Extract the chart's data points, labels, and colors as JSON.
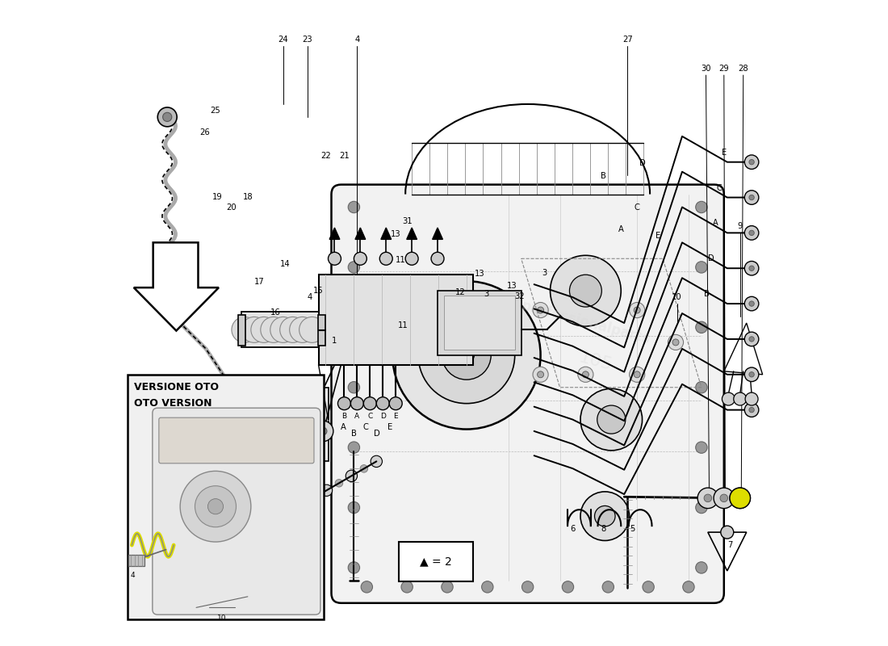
{
  "bg_color": "#ffffff",
  "line_color": "#000000",
  "light_gray": "#cccccc",
  "mid_gray": "#aaaaaa",
  "dark_gray": "#555555",
  "yellow_highlight": "#dddd00",
  "inset_label_line1": "VERSIONE OTO",
  "inset_label_line2": "OTO VERSION",
  "legend_text": "▲ = 2"
}
